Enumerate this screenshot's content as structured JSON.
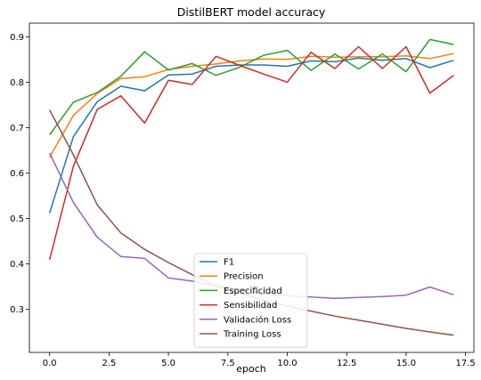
{
  "chart_data": {
    "type": "line",
    "title": "DistilBERT model accuracy",
    "xlabel": "epoch",
    "ylabel": "",
    "xlim": [
      -0.85,
      17.85
    ],
    "ylim": [
      0.205,
      0.93
    ],
    "x_ticks": [
      0.0,
      2.5,
      5.0,
      7.5,
      10.0,
      12.5,
      15.0,
      17.5
    ],
    "x_tick_labels": [
      "0.0",
      "2.5",
      "5.0",
      "7.5",
      "10.0",
      "12.5",
      "15.0",
      "17.5"
    ],
    "y_ticks": [
      0.3,
      0.4,
      0.5,
      0.6,
      0.7,
      0.8,
      0.9
    ],
    "y_tick_labels": [
      "0.3",
      "0.4",
      "0.5",
      "0.6",
      "0.7",
      "0.8",
      "0.9"
    ],
    "grid": false,
    "legend_position": "lower-center",
    "x": [
      0,
      1,
      2,
      3,
      4,
      5,
      6,
      7,
      8,
      9,
      10,
      11,
      12,
      13,
      14,
      15,
      16,
      17
    ],
    "series": [
      {
        "name": "F1",
        "color": "#1f77b4",
        "values": [
          0.512,
          0.68,
          0.757,
          0.791,
          0.781,
          0.816,
          0.818,
          0.835,
          0.838,
          0.838,
          0.835,
          0.847,
          0.845,
          0.853,
          0.848,
          0.852,
          0.832,
          0.848
        ]
      },
      {
        "name": "Precision",
        "color": "#ff7f0e",
        "values": [
          0.635,
          0.727,
          0.775,
          0.808,
          0.812,
          0.828,
          0.835,
          0.84,
          0.847,
          0.851,
          0.85,
          0.857,
          0.855,
          0.856,
          0.856,
          0.858,
          0.852,
          0.863
        ]
      },
      {
        "name": "Especificidad",
        "color": "#2ca02c",
        "values": [
          0.684,
          0.756,
          0.777,
          0.813,
          0.867,
          0.827,
          0.841,
          0.815,
          0.833,
          0.859,
          0.87,
          0.826,
          0.862,
          0.829,
          0.862,
          0.823,
          0.894,
          0.883
        ]
      },
      {
        "name": "Sensibilidad",
        "color": "#d62728",
        "values": [
          0.409,
          0.615,
          0.74,
          0.77,
          0.71,
          0.804,
          0.795,
          0.857,
          0.837,
          0.818,
          0.8,
          0.866,
          0.83,
          0.878,
          0.83,
          0.878,
          0.776,
          0.815
        ]
      },
      {
        "name": "Validación Loss",
        "color": "#9467bd",
        "values": [
          0.644,
          0.535,
          0.459,
          0.416,
          0.412,
          0.369,
          0.362,
          0.351,
          0.345,
          0.334,
          0.33,
          0.327,
          0.324,
          0.326,
          0.328,
          0.331,
          0.349,
          0.332
        ]
      },
      {
        "name": "Training Loss",
        "color": "#8c564b",
        "values": [
          0.739,
          0.64,
          0.53,
          0.468,
          0.432,
          0.403,
          0.376,
          0.351,
          0.336,
          0.32,
          0.307,
          0.296,
          0.285,
          0.276,
          0.267,
          0.258,
          0.25,
          0.243
        ]
      }
    ]
  }
}
